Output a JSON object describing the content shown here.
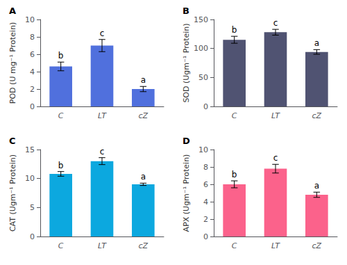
{
  "chart_data": [
    {
      "type": "bar",
      "title": "A",
      "ylabel": "POD (U mg⁻¹ Protein)",
      "categories": [
        "C",
        "LT",
        "cZ"
      ],
      "values": [
        4.6,
        7.0,
        2.0
      ],
      "errors": [
        0.5,
        0.7,
        0.3
      ],
      "annotations": [
        "b",
        "c",
        "a"
      ],
      "ylim": [
        0,
        10
      ],
      "yticks": [
        0,
        2,
        4,
        6,
        8,
        10
      ],
      "grid": false
    },
    {
      "type": "bar",
      "title": "B",
      "ylabel": "SOD (Ugm⁻¹ Protein)",
      "categories": [
        "C",
        "LT",
        "cZ"
      ],
      "values": [
        115,
        128,
        94
      ],
      "errors": [
        6,
        5,
        4
      ],
      "annotations": [
        "b",
        "c",
        "a"
      ],
      "ylim": [
        0,
        150
      ],
      "yticks": [
        0,
        50,
        100,
        150
      ],
      "grid": false
    },
    {
      "type": "bar",
      "title": "C",
      "ylabel": "CAT (Ugm⁻¹ Protein)",
      "categories": [
        "C",
        "LT",
        "cZ"
      ],
      "values": [
        10.8,
        13.0,
        9.0
      ],
      "errors": [
        0.4,
        0.6,
        0.2
      ],
      "annotations": [
        "b",
        "c",
        "a"
      ],
      "ylim": [
        0,
        15
      ],
      "yticks": [
        0,
        5,
        10,
        15
      ],
      "grid": false
    },
    {
      "type": "bar",
      "title": "D",
      "ylabel": "APX (Ugm⁻¹ Protein)",
      "categories": [
        "C",
        "LT",
        "cZ"
      ],
      "values": [
        6.0,
        7.8,
        4.8
      ],
      "errors": [
        0.4,
        0.5,
        0.3
      ],
      "annotations": [
        "b",
        "c",
        "a"
      ],
      "ylim": [
        0,
        10
      ],
      "yticks": [
        0,
        2,
        4,
        6,
        8,
        10
      ],
      "grid": false
    }
  ]
}
